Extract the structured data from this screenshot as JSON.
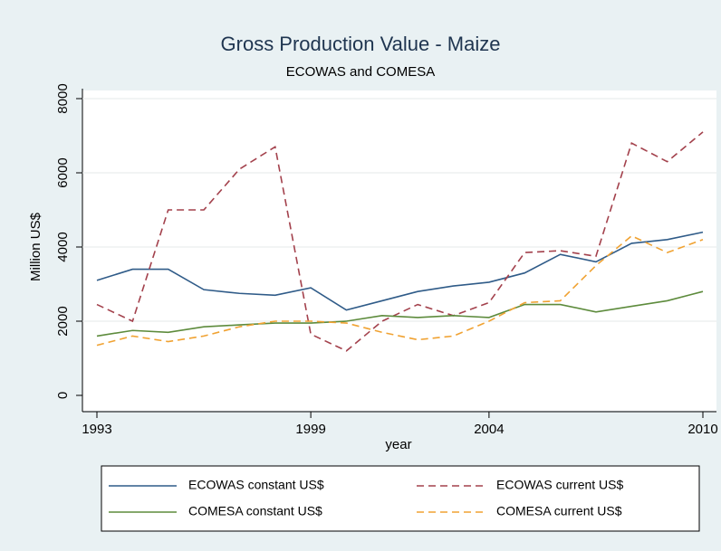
{
  "chart_data": {
    "type": "line",
    "title": "Gross Production Value - Maize",
    "subtitle": "ECOWAS and COMESA",
    "x_label": "year",
    "y_label": "Million US$",
    "x": [
      1993,
      1994,
      1995,
      1996,
      1997,
      1998,
      1999,
      2000,
      2001,
      2002,
      2003,
      2004,
      2005,
      2006,
      2007,
      2008,
      2009,
      2010
    ],
    "series": [
      {
        "name": "ECOWAS constant US$",
        "color": "#2f5b88",
        "line_style": "solid",
        "values": [
          3100,
          3400,
          3400,
          2850,
          2750,
          2700,
          2900,
          2300,
          2550,
          2800,
          2950,
          3050,
          3300,
          3800,
          3600,
          4100,
          4200,
          4400
        ]
      },
      {
        "name": "ECOWAS current US$",
        "color": "#a3414c",
        "line_style": "dashed",
        "values": [
          2450,
          2000,
          5000,
          5000,
          6100,
          6700,
          1650,
          1200,
          2000,
          2450,
          2150,
          2500,
          3850,
          3900,
          3750,
          6800,
          6300,
          7100
        ]
      },
      {
        "name": "COMESA constant US$",
        "color": "#5d8b3c",
        "line_style": "solid",
        "values": [
          1600,
          1750,
          1700,
          1850,
          1900,
          1950,
          1950,
          2000,
          2150,
          2100,
          2150,
          2100,
          2450,
          2450,
          2250,
          2400,
          2550,
          2800
        ]
      },
      {
        "name": "COMESA current US$",
        "color": "#f0a232",
        "line_style": "dashed",
        "values": [
          1350,
          1600,
          1450,
          1600,
          1850,
          2000,
          2000,
          1950,
          1700,
          1500,
          1600,
          2000,
          2500,
          2550,
          3500,
          4300,
          3850,
          4200
        ]
      }
    ],
    "xlim": [
      1993,
      2010
    ],
    "xticks": [
      1993,
      1999,
      2004,
      2010
    ],
    "ylim": [
      0,
      8000
    ],
    "yticks": [
      0,
      2000,
      4000,
      6000,
      8000
    ],
    "grid": true
  }
}
